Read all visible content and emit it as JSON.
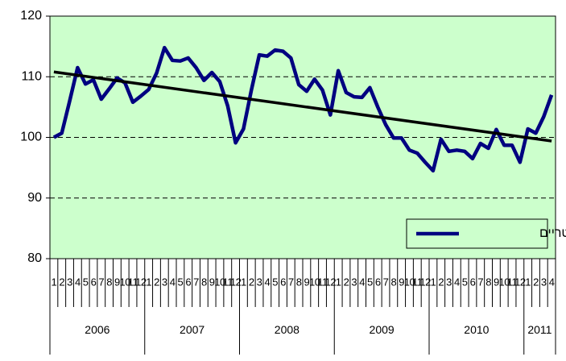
{
  "chart_data": {
    "type": "line",
    "categories": [
      "1",
      "2",
      "3",
      "4",
      "5",
      "6",
      "7",
      "8",
      "9",
      "10",
      "11",
      "12",
      "1",
      "2",
      "3",
      "4",
      "5",
      "6",
      "7",
      "8",
      "9",
      "10",
      "11",
      "12",
      "1",
      "2",
      "3",
      "4",
      "5",
      "6",
      "7",
      "8",
      "9",
      "10",
      "11",
      "12",
      "1",
      "2",
      "3",
      "4",
      "5",
      "6",
      "7",
      "8",
      "9",
      "10",
      "11",
      "12",
      "1",
      "2",
      "3",
      "4",
      "5",
      "6",
      "7",
      "8",
      "9",
      "10",
      "11",
      "12",
      "1",
      "2",
      "3",
      "4"
    ],
    "years": [
      "2006",
      "2007",
      "2008",
      "2009",
      "2010",
      "2011"
    ],
    "series": [
      {
        "name": "דגים טריים",
        "color": "#000080",
        "values": [
          100.0,
          100.7,
          106.0,
          111.5,
          108.8,
          109.5,
          106.3,
          108.0,
          109.8,
          109.0,
          105.8,
          106.8,
          107.9,
          110.6,
          114.8,
          112.7,
          112.6,
          113.1,
          111.5,
          109.4,
          110.7,
          109.2,
          105.2,
          99.1,
          101.4,
          107.8,
          113.6,
          113.4,
          114.4,
          114.2,
          113.1,
          108.7,
          107.6,
          109.6,
          107.8,
          103.7,
          111.0,
          107.4,
          106.7,
          106.6,
          108.2,
          105.0,
          102.1,
          99.9,
          99.9,
          97.9,
          97.4,
          95.9,
          94.5,
          99.7,
          97.7,
          97.9,
          97.7,
          96.5,
          99.0,
          98.2,
          101.3,
          98.7,
          98.7,
          95.9,
          101.4,
          100.7,
          103.4,
          107.0
        ]
      }
    ],
    "trendline": {
      "color": "#000000",
      "values": [
        110.8,
        99.4
      ]
    },
    "ylim": [
      80,
      120
    ],
    "yticks": [
      80,
      90,
      100,
      110,
      120
    ],
    "grid": true,
    "legend": "bottom-right"
  }
}
